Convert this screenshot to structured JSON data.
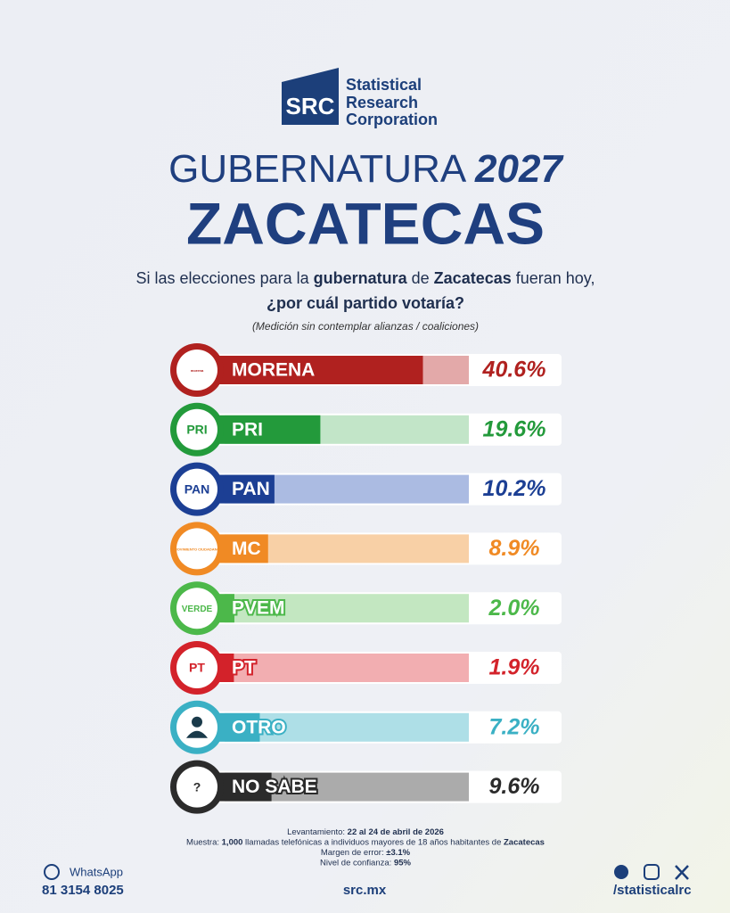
{
  "brand": {
    "mark": "SRC",
    "lines": [
      "Statistical",
      "Research",
      "Corporation"
    ]
  },
  "headline": {
    "main": "GUBERNATURA",
    "year": "2027",
    "state": "ZACATECAS"
  },
  "question": [
    [
      {
        "text": "Si las elecciones para la ",
        "bold": false
      },
      {
        "text": "gubernatura",
        "bold": true
      },
      {
        "text": " de ",
        "bold": false
      },
      {
        "text": "Zacatecas",
        "bold": true
      },
      {
        "text": " fueran hoy,",
        "bold": false
      }
    ],
    [
      {
        "text": "¿por cuál partido votaría?",
        "bold": true
      }
    ]
  ],
  "note": "(Medición sin contemplar alianzas / coaliciones)",
  "chart_data": {
    "type": "bar",
    "orientation": "horizontal",
    "categories": [
      "MORENA",
      "PRI",
      "PAN",
      "MC",
      "PVEM",
      "PT",
      "OTRO",
      "NO SABE"
    ],
    "values": [
      40.6,
      19.6,
      10.2,
      8.9,
      2.0,
      1.9,
      7.2,
      9.6
    ],
    "value_labels": [
      "40.6%",
      "19.6%",
      "10.2%",
      "8.9%",
      "2.0%",
      "1.9%",
      "7.2%",
      "9.6%"
    ],
    "colors": [
      "#b0211f",
      "#239a3b",
      "#1c3f94",
      "#f08a24",
      "#4cb84a",
      "#d3222a",
      "#3ab0c4",
      "#2b2b2b"
    ],
    "light_colors": [
      "#e3a9a9",
      "#c2e5c8",
      "#abbbe2",
      "#f8d0a6",
      "#c3e7c1",
      "#f2aeb1",
      "#aedfe7",
      "#ababab"
    ],
    "xlim": [
      0,
      50
    ]
  },
  "logos": [
    "morena",
    "PRI",
    "PAN",
    "MOVIMIENTO CIUDADANO",
    "VERDE",
    "PT",
    null,
    "?"
  ],
  "methodology": [
    [
      {
        "text": "Levantamiento: ",
        "bold": false
      },
      {
        "text": "22 al 24 de abril de 2026",
        "bold": true
      }
    ],
    [
      {
        "text": "Muestra: ",
        "bold": false
      },
      {
        "text": "1,000",
        "bold": true
      },
      {
        "text": " llamadas telefónicas a individuos mayores de 18 años habitantes de ",
        "bold": false
      },
      {
        "text": "Zacatecas",
        "bold": true
      }
    ],
    [
      {
        "text": "Margen de error: ",
        "bold": false
      },
      {
        "text": "±3.1%",
        "bold": true
      }
    ],
    [
      {
        "text": "Nivel de confianza: ",
        "bold": false
      },
      {
        "text": "95%",
        "bold": true
      }
    ]
  ],
  "footer": {
    "whatsapp": "WhatsApp",
    "phone": "81 3154 8025",
    "site": "src.mx",
    "handle": "/statisticalrc"
  }
}
